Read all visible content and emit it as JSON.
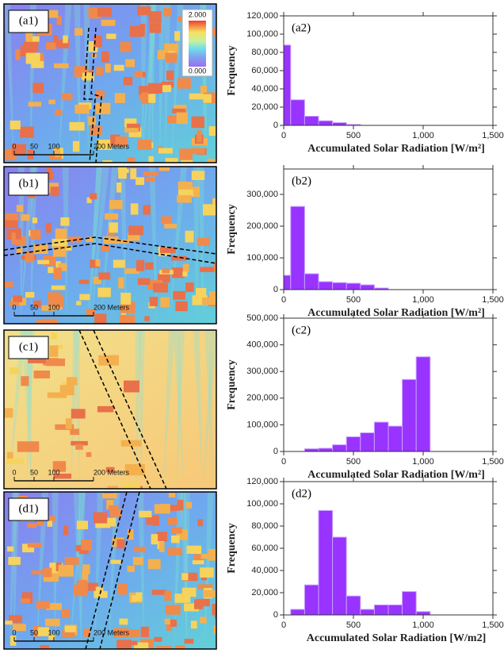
{
  "maps": [
    {
      "label": "(a1)",
      "scale": [
        "0",
        "50",
        "100",
        "200 Meters"
      ]
    },
    {
      "label": "(b1)",
      "scale": [
        "0",
        "50",
        "100",
        "200 Meters"
      ]
    },
    {
      "label": "(c1)",
      "scale": [
        "0",
        "50",
        "100",
        "200 Meters"
      ]
    },
    {
      "label": "(d1)",
      "scale": [
        "0",
        "50",
        "100",
        "200 Meters"
      ]
    }
  ],
  "colorbar": {
    "max": "2.000",
    "min": "0.000"
  },
  "chart_data": [
    {
      "type": "histogram",
      "label": "(a2)",
      "ylabel": "Frequency",
      "xlabel": "Accumulated Solar Radiation [W/m²]",
      "bins": [
        0,
        50,
        150,
        250,
        350,
        450,
        550
      ],
      "values": [
        88000,
        28000,
        10000,
        5000,
        3000,
        1000
      ],
      "color": "#9933ff",
      "xlim": [
        0,
        1500
      ],
      "xticks": [
        0,
        500,
        {
          "value": 1000,
          "label": "1,000"
        },
        {
          "value": 1500,
          "label": "1,500"
        }
      ],
      "ylim": [
        0,
        120000
      ],
      "yticks": [
        0,
        {
          "value": 20000,
          "label": "20,000"
        },
        {
          "value": 40000,
          "label": "40,000"
        },
        {
          "value": 60000,
          "label": "60,000"
        },
        {
          "value": 80000,
          "label": "80,000"
        },
        {
          "value": 100000,
          "label": "100,000"
        },
        {
          "value": 120000,
          "label": "120,000"
        }
      ]
    },
    {
      "type": "histogram",
      "label": "(b2)",
      "ylabel": "Frequency",
      "xlabel": "Accumulated Solar Radiation [W/m²]",
      "bins": [
        0,
        50,
        150,
        250,
        350,
        450,
        550,
        650,
        750
      ],
      "values": [
        45000,
        262000,
        50000,
        25000,
        22000,
        20000,
        15000,
        5000
      ],
      "color": "#9933ff",
      "xlim": [
        0,
        1500
      ],
      "xticks": [
        0,
        500,
        {
          "value": 1000,
          "label": "1,000"
        },
        {
          "value": 1500,
          "label": "1,500"
        }
      ],
      "ylim": [
        0,
        380000
      ],
      "yticks": [
        0,
        {
          "value": 100000,
          "label": "100,000"
        },
        {
          "value": 200000,
          "label": "200,000"
        },
        {
          "value": 300000,
          "label": "300,000"
        }
      ]
    },
    {
      "type": "histogram",
      "label": "(c2)",
      "ylabel": "Frequency",
      "xlabel": "Accumulated Solar Radiation [W/m²]",
      "bins": [
        150,
        250,
        350,
        450,
        550,
        650,
        750,
        850,
        950,
        1050
      ],
      "values": [
        10000,
        12000,
        25000,
        55000,
        70000,
        110000,
        95000,
        270000,
        355000
      ],
      "color": "#9933ff",
      "xlim": [
        0,
        1500
      ],
      "xticks": [
        0,
        500,
        {
          "value": 1000,
          "label": "1,000"
        },
        {
          "value": 1500,
          "label": "1,500"
        }
      ],
      "ylim": [
        0,
        500000
      ],
      "yticks": [
        0,
        {
          "value": 100000,
          "label": "100,000"
        },
        {
          "value": 200000,
          "label": "200,000"
        },
        {
          "value": 300000,
          "label": "300,000"
        },
        {
          "value": 400000,
          "label": "400,000"
        },
        {
          "value": 500000,
          "label": "500,000"
        }
      ]
    },
    {
      "type": "histogram",
      "label": "(d2)",
      "ylabel": "Frequency",
      "xlabel": "Accumulated Solar Radiation [W/m2]",
      "bins": [
        50,
        150,
        250,
        350,
        450,
        550,
        650,
        750,
        850,
        950,
        1050
      ],
      "values": [
        5000,
        27000,
        94000,
        70000,
        17000,
        5000,
        9000,
        9000,
        21000,
        3000
      ],
      "color": "#9933ff",
      "xlim": [
        0,
        1500
      ],
      "xticks": [
        0,
        500,
        {
          "value": 1000,
          "label": "1,000"
        },
        {
          "value": 1500,
          "label": "1,500"
        }
      ],
      "ylim": [
        0,
        120000
      ],
      "yticks": [
        0,
        {
          "value": 20000,
          "label": "20,000"
        },
        {
          "value": 40000,
          "label": "40,000"
        },
        {
          "value": 60000,
          "label": "60,000"
        },
        {
          "value": 80000,
          "label": "80,000"
        },
        {
          "value": 100000,
          "label": "100,000"
        },
        {
          "value": 120000,
          "label": "120,000"
        }
      ]
    }
  ]
}
